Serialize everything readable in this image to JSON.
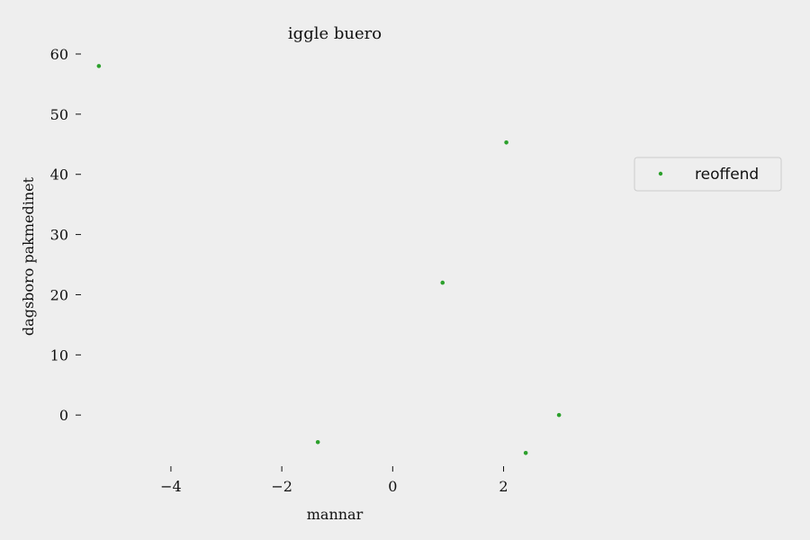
{
  "chart_data": {
    "type": "scatter",
    "title": "iggle buero",
    "xlabel": "mannar",
    "ylabel": "dagsboro pakmedinet",
    "xlim": [
      -5.2,
      7.3
    ],
    "ylim": [
      -8.5,
      60
    ],
    "xticks": [
      -4,
      -2,
      0,
      2
    ],
    "xtick_labels": [
      "−4",
      "−2",
      "0",
      "2"
    ],
    "yticks": [
      0,
      10,
      20,
      30,
      40,
      50,
      60
    ],
    "ytick_labels": [
      "0",
      "10",
      "20",
      "30",
      "40",
      "50",
      "60"
    ],
    "grid": false,
    "legend_position": "right",
    "series": [
      {
        "name": "reoffend",
        "color": "#2ca02c",
        "x": [
          -5.3,
          2.05,
          0.9,
          -1.35,
          3.0,
          2.4
        ],
        "y": [
          58.0,
          45.3,
          22.0,
          -4.5,
          0.0,
          -6.3
        ]
      }
    ]
  }
}
